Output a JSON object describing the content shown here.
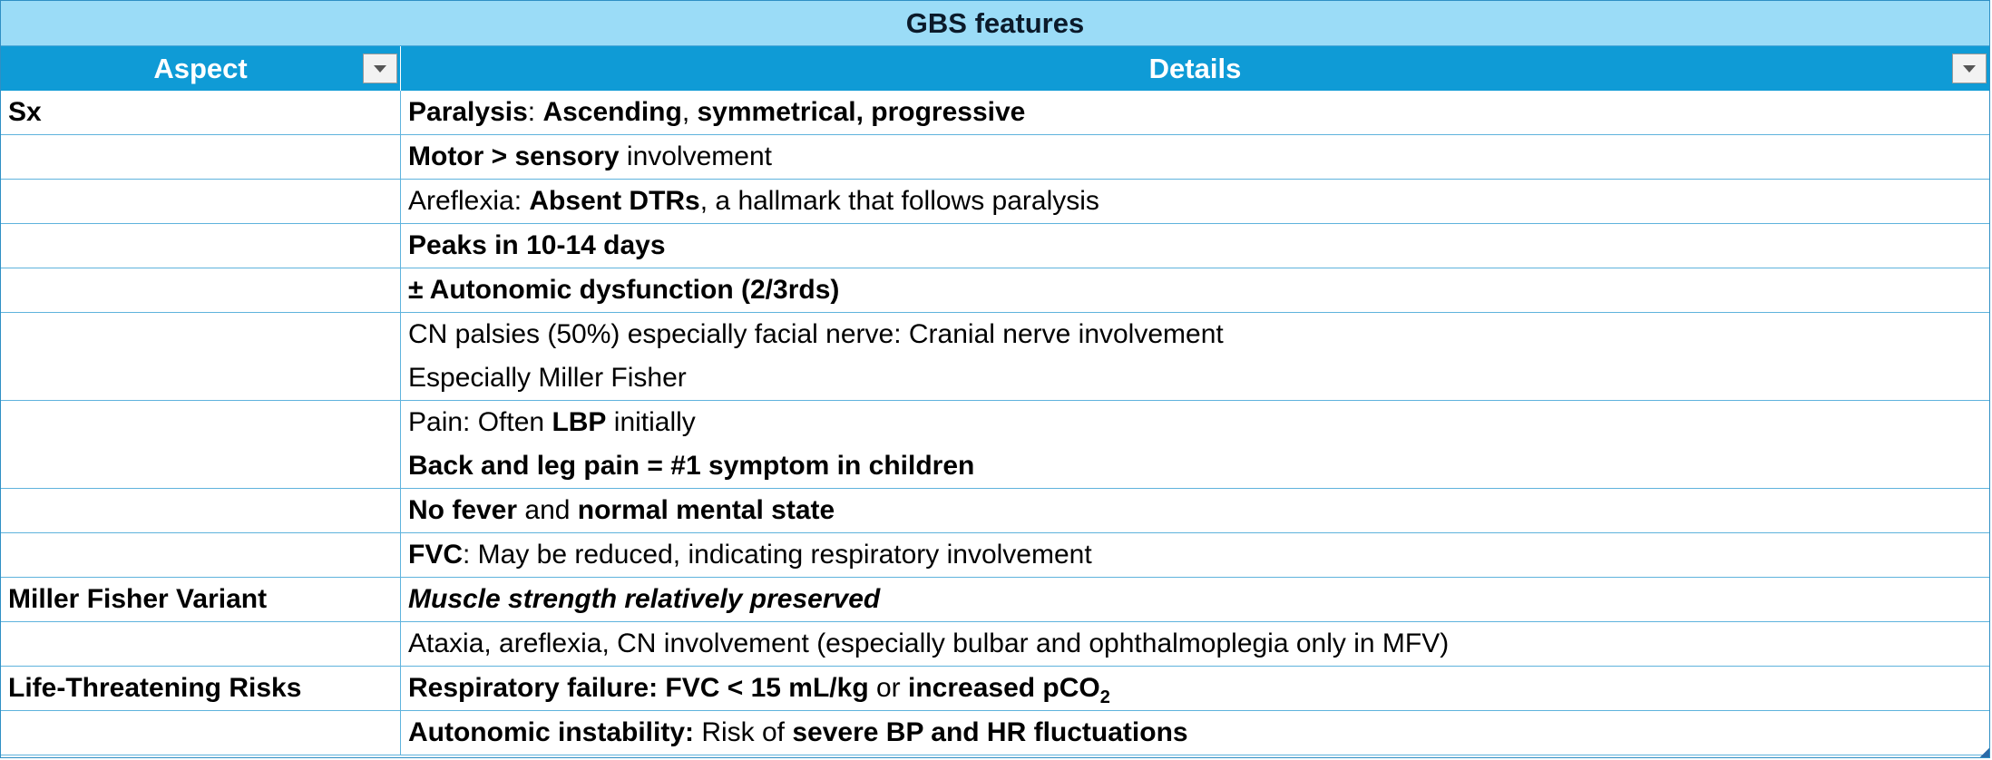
{
  "table": {
    "title": "GBS features",
    "headers": {
      "aspect": "Aspect",
      "details": "Details"
    },
    "rows": [
      {
        "aspect": "Sx",
        "lines": [
          [
            {
              "t": "Paralysis",
              "s": "b"
            },
            {
              "t": ": "
            },
            {
              "t": "Ascending",
              "s": "b"
            },
            {
              "t": ", "
            },
            {
              "t": "symmetrical, progressive",
              "s": "b"
            }
          ]
        ]
      },
      {
        "aspect": "",
        "lines": [
          [
            {
              "t": "Motor > sensory",
              "s": "b"
            },
            {
              "t": " involvement"
            }
          ]
        ]
      },
      {
        "aspect": "",
        "lines": [
          [
            {
              "t": "Areflexia: "
            },
            {
              "t": "Absent DTRs",
              "s": "b"
            },
            {
              "t": ", a hallmark that follows paralysis"
            }
          ]
        ]
      },
      {
        "aspect": "",
        "lines": [
          [
            {
              "t": "Peaks in 10-14 days",
              "s": "b"
            }
          ]
        ]
      },
      {
        "aspect": "",
        "lines": [
          [
            {
              "t": "± Autonomic dysfunction (2/3rds)",
              "s": "b"
            }
          ]
        ]
      },
      {
        "aspect": "",
        "lines": [
          [
            {
              "t": "CN palsies (50%) especially facial nerve: Cranial nerve involvement"
            }
          ],
          [
            {
              "t": "Especially Miller Fisher"
            }
          ]
        ]
      },
      {
        "aspect": "",
        "lines": [
          [
            {
              "t": "Pain: Often "
            },
            {
              "t": "LBP",
              "s": "b"
            },
            {
              "t": " initially"
            }
          ],
          [
            {
              "t": "Back and leg pain = #1 symptom in children",
              "s": "b"
            }
          ]
        ]
      },
      {
        "aspect": "",
        "lines": [
          [
            {
              "t": "No fever",
              "s": "b"
            },
            {
              "t": " and "
            },
            {
              "t": "normal mental state",
              "s": "b"
            }
          ]
        ]
      },
      {
        "aspect": "",
        "lines": [
          [
            {
              "t": "FVC",
              "s": "b"
            },
            {
              "t": ": May be reduced, indicating respiratory involvement"
            }
          ]
        ]
      },
      {
        "aspect": "Miller Fisher Variant",
        "lines": [
          [
            {
              "t": "Muscle strength relatively preserved",
              "s": "bi"
            }
          ]
        ]
      },
      {
        "aspect": "",
        "lines": [
          [
            {
              "t": "Ataxia, areflexia, CN involvement (especially bulbar and ophthalmoplegia only in MFV)"
            }
          ]
        ]
      },
      {
        "aspect": "Life-Threatening Risks",
        "lines": [
          [
            {
              "t": "Respiratory failure: FVC < 15 mL/kg",
              "s": "b"
            },
            {
              "t": " or "
            },
            {
              "t": "increased pCO",
              "s": "b"
            },
            {
              "t": "2",
              "s": "sub"
            }
          ]
        ]
      },
      {
        "aspect": "",
        "lines": [
          [
            {
              "t": "Autonomic instability:",
              "s": "b"
            },
            {
              "t": " Risk of "
            },
            {
              "t": "severe BP and HR fluctuations",
              "s": "b"
            }
          ]
        ]
      }
    ]
  }
}
